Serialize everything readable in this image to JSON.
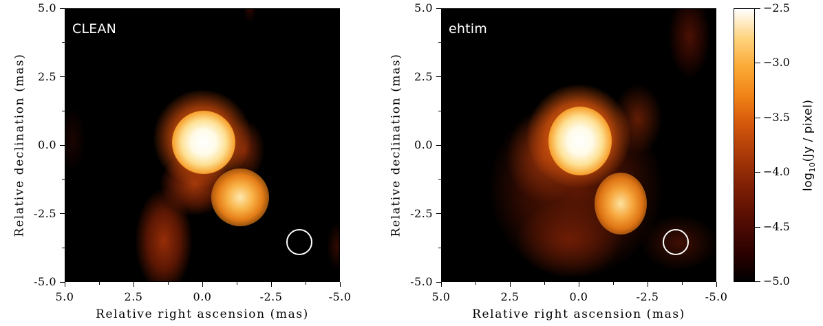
{
  "panels": [
    {
      "label": "CLEAN",
      "xlabel": "Relative right ascension (mas)",
      "ylabel": "Relative declination (mas)",
      "xticks": [
        "5.0",
        "2.5",
        "0.0",
        "-2.5",
        "-5.0"
      ],
      "yticks": [
        "5.0",
        "2.5",
        "0.0",
        "-2.5",
        "-5.0"
      ],
      "xlim": [
        5.0,
        -5.0
      ],
      "ylim": [
        -5.0,
        5.0
      ]
    },
    {
      "label": "ehtim",
      "xlabel": "Relative right ascension (mas)",
      "ylabel": "Relative declination (mas)",
      "xticks": [
        "5.0",
        "2.5",
        "0.0",
        "-2.5",
        "-5.0"
      ],
      "yticks": [
        "5.0",
        "2.5",
        "0.0",
        "-2.5",
        "-5.0"
      ],
      "xlim": [
        5.0,
        -5.0
      ],
      "ylim": [
        -5.0,
        5.0
      ]
    }
  ],
  "colorbar": {
    "title_prefix": "log",
    "title_sub": "10",
    "title_suffix": "(Jy / pixel)",
    "ticks": [
      "−2.5",
      "−3.0",
      "−3.5",
      "−4.0",
      "−4.5",
      "−5.0"
    ],
    "range": [
      -5.0,
      -2.5
    ],
    "colormap": "afmhot"
  }
}
